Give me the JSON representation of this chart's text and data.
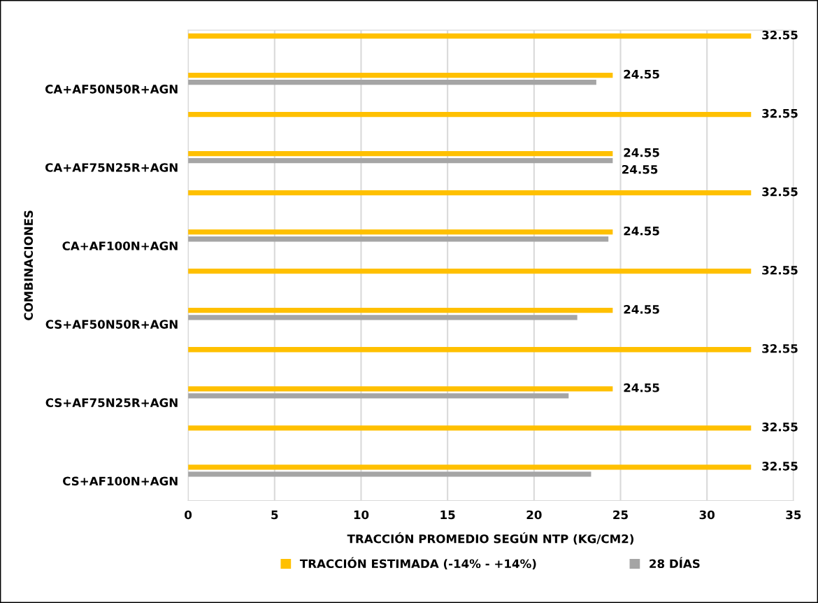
{
  "chart_data": {
    "type": "bar",
    "orientation": "horizontal",
    "xlabel": "TRACCIÓN PROMEDIO SEGÚN NTP (KG/CM2)",
    "ylabel": "COMBINACIONES",
    "categories": [
      null,
      "CA+AF50N50R+AGN",
      null,
      "CA+AF75N25R+AGN",
      null,
      "CA+AF100N+AGN",
      null,
      "CS+AF50N50R+AGN",
      null,
      "CS+AF75N25R+AGN",
      null,
      "CS+AF100N+AGN"
    ],
    "series": [
      {
        "name": "TRACCIÓN ESTIMADA (-14% - +14%)",
        "color": "#ffc000",
        "values": [
          32.55,
          24.55,
          32.55,
          24.55,
          32.55,
          24.55,
          32.55,
          24.55,
          32.55,
          24.55,
          32.55,
          32.55
        ],
        "value_labels": [
          "32.55",
          "24.55",
          "32.55",
          "24.55",
          "32.55",
          "24.55",
          "32.55",
          "24.55",
          "32.55",
          "24.55",
          "32.55",
          "32.55"
        ]
      },
      {
        "name": "28 DÍAS",
        "color": "#a5a5a5",
        "values": [
          null,
          23.6,
          null,
          24.55,
          null,
          24.3,
          null,
          22.5,
          null,
          22.0,
          null,
          23.3
        ],
        "value_labels": [
          null,
          null,
          null,
          "24.55",
          null,
          null,
          null,
          null,
          null,
          null,
          null,
          null
        ]
      }
    ],
    "xlim": [
      0,
      35
    ],
    "xticks": [
      0,
      5,
      10,
      15,
      20,
      25,
      30,
      35
    ],
    "grid": "x",
    "legend": "bottom"
  }
}
